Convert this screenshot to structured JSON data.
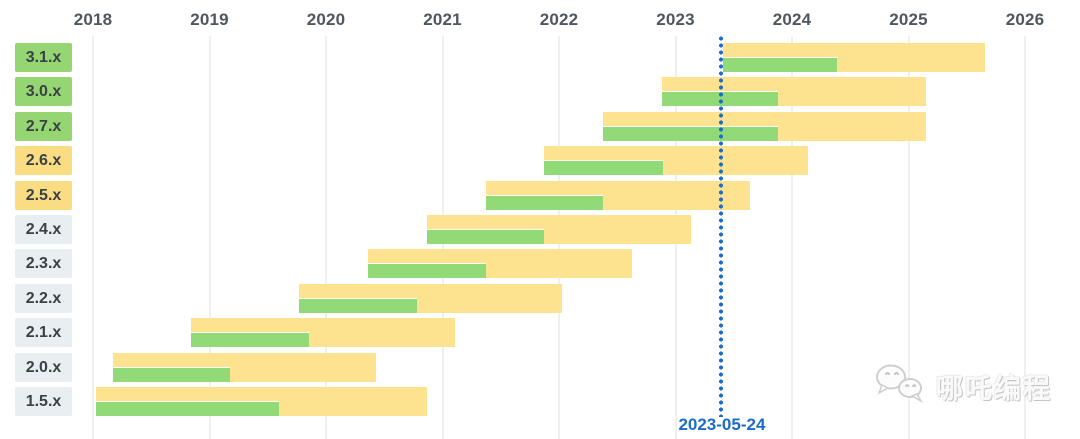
{
  "chart_data": {
    "type": "gantt",
    "title": "",
    "x_axis": {
      "tick_labels": [
        "2018",
        "2019",
        "2020",
        "2021",
        "2022",
        "2023",
        "2024",
        "2025",
        "2026"
      ],
      "range": [
        2017.95,
        2026.48
      ],
      "grid": true
    },
    "marker": {
      "label": "2023-05-24",
      "position_year": 2023.39
    },
    "rows": [
      {
        "version": "3.1.x",
        "label_style": "green",
        "start": 2023.41,
        "green_until": 2024.39,
        "yellow_until": 2025.66
      },
      {
        "version": "3.0.x",
        "label_style": "green",
        "start": 2022.88,
        "green_until": 2023.88,
        "yellow_until": 2025.15
      },
      {
        "version": "2.7.x",
        "label_style": "green",
        "start": 2022.38,
        "green_until": 2023.88,
        "yellow_until": 2025.15
      },
      {
        "version": "2.6.x",
        "label_style": "yellow",
        "start": 2021.87,
        "green_until": 2022.89,
        "yellow_until": 2024.14
      },
      {
        "version": "2.5.x",
        "label_style": "yellow",
        "start": 2021.37,
        "green_until": 2022.38,
        "yellow_until": 2023.64
      },
      {
        "version": "2.4.x",
        "label_style": "gray",
        "start": 2020.87,
        "green_until": 2021.87,
        "yellow_until": 2023.13
      },
      {
        "version": "2.3.x",
        "label_style": "gray",
        "start": 2020.36,
        "green_until": 2021.37,
        "yellow_until": 2022.63
      },
      {
        "version": "2.2.x",
        "label_style": "gray",
        "start": 2019.77,
        "green_until": 2020.78,
        "yellow_until": 2022.03
      },
      {
        "version": "2.1.x",
        "label_style": "gray",
        "start": 2018.84,
        "green_until": 2019.85,
        "yellow_until": 2021.11
      },
      {
        "version": "2.0.x",
        "label_style": "gray",
        "start": 2018.17,
        "green_until": 2019.18,
        "yellow_until": 2020.43
      },
      {
        "version": "1.5.x",
        "label_style": "gray",
        "start": 2018.03,
        "green_until": 2019.6,
        "yellow_until": 2020.87
      }
    ]
  },
  "colors": {
    "bar_yellow": "#FDE28F",
    "bar_green": "#92DA78",
    "label_green": "#95D572",
    "label_yellow": "#FADC82",
    "label_gray": "#E9EEF0",
    "label_text": "#3A4047",
    "axis_text": "#50565E",
    "grid": "#EDF0F2",
    "marker_blue": "#1B6DC9"
  },
  "watermark": {
    "text": "哪吒编程",
    "icon": "wechat-icon"
  }
}
